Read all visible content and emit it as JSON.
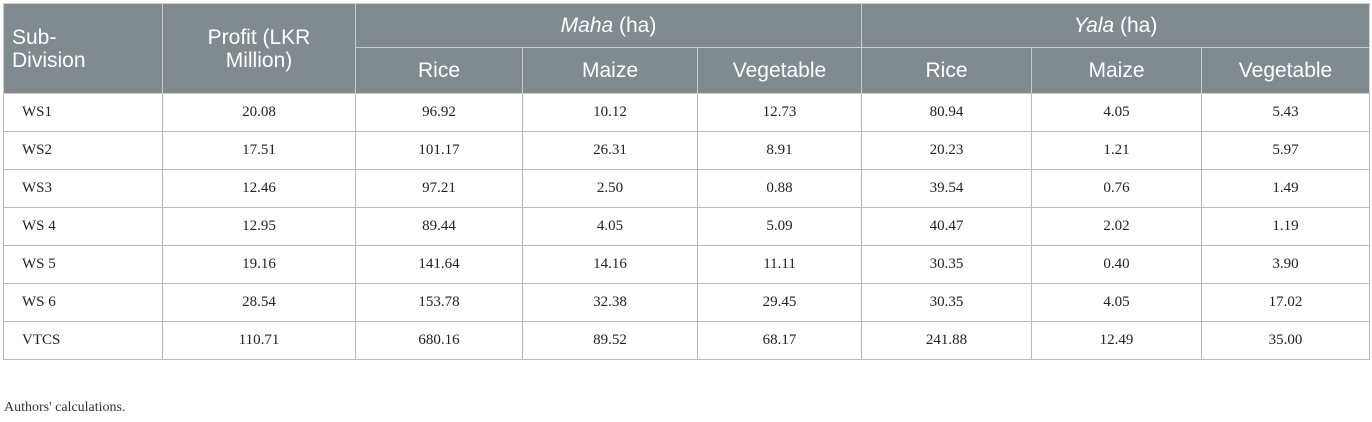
{
  "header": {
    "subdivision": "Sub-Division",
    "profit": "Profit (LKR Million)",
    "maha_name": "Maha",
    "maha_unit": " (ha)",
    "yala_name": "Yala",
    "yala_unit": " (ha)",
    "crops": [
      "Rice",
      "Maize",
      "Vegetable",
      "Rice",
      "Maize",
      "Vegetable"
    ]
  },
  "rows": [
    {
      "name": "WS1",
      "values": [
        "20.08",
        "96.92",
        "10.12",
        "12.73",
        "80.94",
        "4.05",
        "5.43"
      ]
    },
    {
      "name": "WS2",
      "values": [
        "17.51",
        "101.17",
        "26.31",
        "8.91",
        "20.23",
        "1.21",
        "5.97"
      ]
    },
    {
      "name": "WS3",
      "values": [
        "12.46",
        "97.21",
        "2.50",
        "0.88",
        "39.54",
        "0.76",
        "1.49"
      ]
    },
    {
      "name": "WS 4",
      "values": [
        "12.95",
        "89.44",
        "4.05",
        "5.09",
        "40.47",
        "2.02",
        "1.19"
      ]
    },
    {
      "name": "WS 5",
      "values": [
        "19.16",
        "141.64",
        "14.16",
        "11.11",
        "30.35",
        "0.40",
        "3.90"
      ]
    },
    {
      "name": "WS 6",
      "values": [
        "28.54",
        "153.78",
        "32.38",
        "29.45",
        "30.35",
        "4.05",
        "17.02"
      ]
    },
    {
      "name": "VTCS",
      "values": [
        "110.71",
        "680.16",
        "89.52",
        "68.17",
        "241.88",
        "12.49",
        "35.00"
      ]
    }
  ],
  "footnote": "Authors' calculations."
}
